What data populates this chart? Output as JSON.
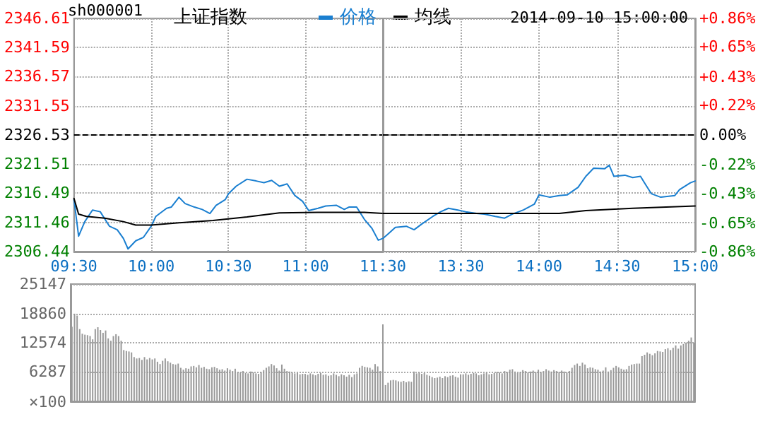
{
  "chart_data": [
    {
      "type": "line",
      "title": "上证指数",
      "annotations": [
        "sh000001"
      ],
      "series": [
        {
          "name": "价格",
          "color": "#1a7fd0",
          "x": [
            9.5,
            9.53,
            9.57,
            9.62,
            9.67,
            9.73,
            9.78,
            9.82,
            9.85,
            9.9,
            9.95,
            10,
            10.03,
            10.1,
            10.13,
            10.18,
            10.22,
            10.28,
            10.33,
            10.38,
            10.42,
            10.48,
            10.5,
            10.55,
            10.62,
            10.68,
            10.73,
            10.78,
            10.83,
            10.88,
            10.93,
            10.98,
            11.02,
            11.08,
            11.13,
            11.2,
            11.25,
            11.28,
            11.33,
            11.38,
            11.43,
            11.47,
            11.5
          ],
          "values": [
            2315.4,
            2309.1,
            2311.6,
            2313.6,
            2313.3,
            2310.8,
            2310.2,
            2308.7,
            2306.9,
            2308.3,
            2308.9,
            2310.8,
            2312.5,
            2313.9,
            2314.1,
            2315.8,
            2314.7,
            2314.1,
            2313.7,
            2313.0,
            2314.4,
            2315.4,
            2316.4,
            2317.7,
            2318.9,
            2318.6,
            2318.3,
            2318.7,
            2317.7,
            2318.1,
            2316.1,
            2315.1,
            2313.5,
            2313.9,
            2314.3,
            2314.4,
            2313.7,
            2314.1,
            2314.1,
            2312.0,
            2310.4,
            2308.4,
            2308.7
          ]
        },
        {
          "name": "均线",
          "color": "#000000",
          "x": [
            9.5,
            9.53,
            9.58,
            9.7,
            9.82,
            9.9,
            10,
            10.18,
            10.4,
            10.62,
            10.83,
            11.08,
            11.38,
            11.5
          ],
          "values": [
            2315.6,
            2312.9,
            2312.5,
            2312.2,
            2311.6,
            2311.0,
            2311.0,
            2311.4,
            2311.8,
            2312.4,
            2313.1,
            2313.2,
            2313.2,
            2313.0
          ]
        }
      ],
      "xlim": [
        9.5,
        11.5
      ],
      "xticks": [
        {
          "value": 9.5,
          "label": "09:30"
        },
        {
          "value": 10,
          "label": "10:00"
        },
        {
          "value": 10.5,
          "label": "10:30"
        },
        {
          "value": 11,
          "label": "11:00"
        },
        {
          "value": 11.5,
          "label": "11:30"
        }
      ],
      "ylim": [
        2306.44,
        2346.61
      ],
      "yticks": [
        2306.44,
        2311.46,
        2316.49,
        2321.51,
        2326.53,
        2331.55,
        2336.57,
        2341.59,
        2346.61
      ],
      "ref_lines": [
        {
          "axis": "y",
          "value": 2326.53,
          "color": "#000000",
          "line_style": "dashed"
        }
      ],
      "grid": true,
      "legend": "top",
      "marker": "none",
      "line_style": "solid"
    },
    {
      "type": "line",
      "subtitle": "2014-09-10 15:00:00",
      "series": [
        {
          "color": "#1a7fd0",
          "x": [
            13,
            13.03,
            13.08,
            13.15,
            13.2,
            13.25,
            13.32,
            13.37,
            13.42,
            13.48,
            13.53,
            13.6,
            13.65,
            13.72,
            13.78,
            13.83,
            13.9,
            13.97,
            14,
            14.07,
            14.13,
            14.18,
            14.25,
            14.3,
            14.35,
            14.42,
            14.45,
            14.48,
            14.55,
            14.6,
            14.65,
            14.68,
            14.72,
            14.78,
            14.87,
            14.9,
            14.97,
            15
          ],
          "values": [
            2308.7,
            2309.4,
            2310.6,
            2310.8,
            2310.2,
            2311.2,
            2312.5,
            2313.3,
            2313.9,
            2313.6,
            2313.3,
            2313.0,
            2312.9,
            2312.5,
            2312.2,
            2312.9,
            2313.6,
            2314.6,
            2316.2,
            2315.8,
            2316.1,
            2316.2,
            2317.5,
            2319.4,
            2320.8,
            2320.7,
            2321.3,
            2319.4,
            2319.6,
            2319.2,
            2319.4,
            2318.1,
            2316.4,
            2315.8,
            2316.1,
            2317.1,
            2318.3,
            2318.6
          ]
        },
        {
          "color": "#000000",
          "x": [
            13,
            13.4,
            14.13,
            14.3,
            14.6,
            15
          ],
          "values": [
            2313.0,
            2313.0,
            2313.0,
            2313.5,
            2313.9,
            2314.3
          ]
        }
      ],
      "xlim": [
        13,
        15
      ],
      "xticks": [
        {
          "value": 13,
          "label": null
        },
        {
          "value": 13.5,
          "label": "13:30"
        },
        {
          "value": 14,
          "label": "14:00"
        },
        {
          "value": 14.5,
          "label": "14:30"
        },
        {
          "value": 15,
          "label": "15:00"
        }
      ],
      "ylim": [
        2306.44,
        2346.61
      ],
      "yticks": [
        2306.44,
        2311.46,
        2316.49,
        2321.51,
        2326.53,
        2331.55,
        2336.57,
        2341.59,
        2346.61
      ],
      "y2lim": [
        -0.86,
        0.86
      ],
      "y2ticks": [
        {
          "value": -0.86,
          "label": "-0.86%"
        },
        {
          "value": -0.65,
          "label": "-0.65%"
        },
        {
          "value": -0.43,
          "label": "-0.43%"
        },
        {
          "value": -0.22,
          "label": "-0.22%"
        },
        {
          "value": 0,
          "label": "0.00%"
        },
        {
          "value": 0.22,
          "label": "+0.22%"
        },
        {
          "value": 0.43,
          "label": "+0.43%"
        },
        {
          "value": 0.65,
          "label": "+0.65%"
        },
        {
          "value": 0.86,
          "label": "+0.86%"
        }
      ],
      "ref_lines": [
        {
          "axis": "y",
          "value": 2326.53,
          "color": "#000000",
          "line_style": "dashed"
        }
      ],
      "tick_labels": "x",
      "grid": true,
      "marker": "none",
      "line_style": "solid"
    },
    {
      "type": "bar",
      "ylabel": "×100",
      "categories": [
        null,
        null,
        null,
        null,
        null,
        null,
        null,
        null,
        null,
        null,
        null,
        null,
        null,
        null,
        null,
        null,
        null,
        null,
        null,
        null,
        null,
        null,
        null,
        null,
        null,
        null,
        null,
        null,
        null,
        null,
        null,
        null,
        null,
        null,
        null,
        null,
        null,
        null,
        null,
        null,
        null,
        null,
        null,
        null,
        null,
        null,
        null,
        null,
        null,
        null,
        null,
        null,
        null,
        null,
        null,
        null,
        null,
        null,
        null,
        null,
        null,
        null,
        null,
        null,
        null,
        null,
        null,
        null,
        null,
        null,
        null,
        null,
        null,
        null,
        null,
        null,
        null,
        null,
        null,
        null,
        null,
        null,
        null,
        null,
        null,
        null,
        null,
        null,
        null,
        null,
        null,
        null,
        null,
        null,
        null,
        null,
        null,
        null,
        null,
        null,
        null,
        null,
        null,
        null,
        null,
        null,
        null,
        null,
        null,
        null,
        null,
        null,
        null,
        null,
        null,
        null,
        null,
        null,
        null,
        null,
        null,
        null,
        null,
        null,
        null,
        null,
        null,
        null,
        null,
        null,
        null,
        null,
        null,
        null,
        null,
        null,
        null,
        null,
        null,
        null,
        null,
        null,
        null,
        null,
        null,
        null,
        null,
        null,
        null,
        null,
        null,
        null,
        null,
        null,
        null,
        null,
        null,
        null,
        null,
        null,
        null,
        null,
        null,
        null,
        null,
        null,
        null,
        null,
        null,
        null,
        null,
        null,
        null,
        null,
        null,
        null,
        null,
        null,
        null,
        null,
        null,
        null,
        null,
        null,
        null,
        null,
        null,
        null,
        null,
        null,
        null,
        null,
        null,
        null,
        null,
        null,
        null,
        null,
        null,
        null,
        null,
        null,
        null,
        null,
        null,
        null,
        null,
        null,
        null,
        null,
        null,
        null,
        null,
        null,
        null,
        null,
        null,
        null,
        null,
        null,
        null,
        null,
        null,
        null,
        null,
        null,
        null,
        null,
        null,
        null,
        null,
        null,
        null,
        null,
        null,
        null,
        null,
        null,
        null,
        null,
        null
      ],
      "series": [
        {
          "color": "#999999",
          "values": [
            16000,
            18800,
            18400,
            15500,
            14500,
            14300,
            14200,
            14000,
            13300,
            15500,
            15900,
            15300,
            14700,
            15200,
            13500,
            13000,
            14000,
            14400,
            14000,
            13000,
            11000,
            10800,
            10700,
            10500,
            9500,
            9200,
            9300,
            8900,
            9500,
            9000,
            9300,
            9000,
            9200,
            8500,
            8000,
            8700,
            9200,
            8600,
            8300,
            8000,
            7900,
            8100,
            7200,
            6800,
            7100,
            7000,
            7500,
            7600,
            7300,
            7800,
            7200,
            7400,
            7000,
            6900,
            7300,
            7400,
            7100,
            6800,
            6900,
            6600,
            7100,
            6800,
            6500,
            7000,
            6300,
            6200,
            6500,
            6100,
            6000,
            6400,
            6200,
            6000,
            5900,
            6300,
            6700,
            7200,
            7500,
            8000,
            7700,
            7100,
            6600,
            7900,
            7000,
            6500,
            6400,
            6200,
            6000,
            6100,
            5800,
            5900,
            5900,
            5700,
            6000,
            5800,
            5600,
            5900,
            6100,
            5700,
            5800,
            5500,
            5600,
            6000,
            5700,
            5400,
            5800,
            5600,
            5300,
            5700,
            5200,
            5800,
            6000,
            7200,
            7600,
            7400,
            7300,
            7200,
            6800,
            8000,
            7500,
            6500,
            16500,
            3500,
            4000,
            4500,
            4600,
            4500,
            4300,
            4200,
            4400,
            4100,
            4300,
            4200,
            6400,
            6000,
            6200,
            5900,
            6100,
            5700,
            5500,
            5200,
            5000,
            5100,
            5300,
            5000,
            5400,
            5200,
            5500,
            5600,
            5300,
            5100,
            5800,
            5800,
            6000,
            5700,
            5900,
            6100,
            6000,
            5600,
            5800,
            6000,
            6200,
            5800,
            5900,
            6100,
            6300,
            6200,
            6000,
            6500,
            6300,
            6800,
            6900,
            6400,
            6100,
            6300,
            6700,
            6500,
            6200,
            6400,
            6600,
            6300,
            6800,
            6300,
            6500,
            6900,
            6600,
            6400,
            6700,
            6500,
            6300,
            6600,
            6400,
            6200,
            6500,
            7200,
            7800,
            8100,
            7600,
            8300,
            7900,
            7100,
            7300,
            7200,
            6900,
            6800,
            6400,
            6600,
            7300,
            6400,
            6700,
            7200,
            7600,
            7300,
            7000,
            6800,
            6900,
            7600,
            7900,
            8000,
            8100,
            8100,
            9700,
            10000,
            10500,
            10200,
            9900,
            10300,
            10800,
            10700,
            10600,
            11200,
            11400,
            11000,
            11500,
            12000,
            11300,
            12000,
            12300,
            12600,
            13000,
            13700,
            12600
          ]
        }
      ],
      "ylim": [
        0,
        25147
      ],
      "yticks": [
        6287,
        12574,
        18860,
        25147
      ],
      "tick_labels": "y",
      "grid": "y"
    }
  ]
}
